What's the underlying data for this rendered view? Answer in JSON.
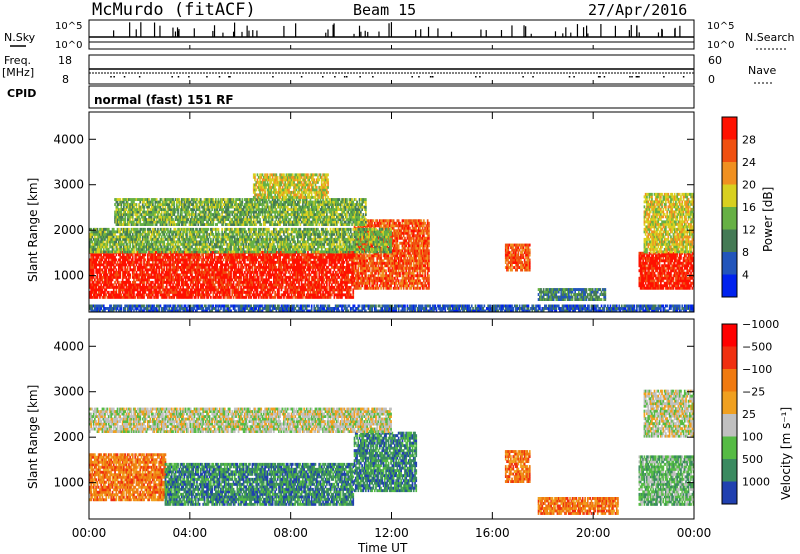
{
  "header": {
    "station": "McMurdo (fitACF)",
    "beam": "Beam 15",
    "date": "27/Apr/2016"
  },
  "top_panels": {
    "nsky_label": "N.Sky",
    "nsearch_label": "N.Search",
    "nsky_ticks": [
      "10^5",
      "10^0"
    ],
    "freq_label_1": "Freq.",
    "freq_label_2": "[MHz]",
    "freq_ticks": [
      "18",
      "8"
    ],
    "nave_label": "Nave",
    "nave_ticks": [
      "60",
      "0"
    ],
    "cpid_label": "CPID",
    "cpid_text": "normal (fast) 151 RF"
  },
  "chart_data": [
    {
      "type": "heatmap",
      "name": "power",
      "ylabel": "Slant Range [km]",
      "xlabel": "",
      "x_ticks": [
        "00:00",
        "04:00",
        "08:00",
        "12:00",
        "16:00",
        "20:00",
        "00:00"
      ],
      "y_ticks": [
        1000,
        2000,
        3000,
        4000
      ],
      "ylim": [
        200,
        4600
      ],
      "xlim_hours": [
        0,
        24
      ],
      "colorbar_label": "Power [dB]",
      "colorbar_ticks": [
        "4",
        "8",
        "12",
        "16",
        "20",
        "24",
        "28"
      ],
      "colorbar_colors": [
        "#0022ee",
        "#2255bb",
        "#447a55",
        "#66b044",
        "#d8d020",
        "#f09020",
        "#f05010",
        "#ff1100"
      ],
      "regions": [
        {
          "t": [
            0.0,
            10.5
          ],
          "r": [
            500,
            1500
          ],
          "level": 7
        },
        {
          "t": [
            10.5,
            13.5
          ],
          "r": [
            700,
            2200
          ],
          "level": 6
        },
        {
          "t": [
            0.0,
            12.0
          ],
          "r": [
            1500,
            2000
          ],
          "level": 3
        },
        {
          "t": [
            1.0,
            11.0
          ],
          "r": [
            2100,
            2700
          ],
          "level": 3
        },
        {
          "t": [
            6.5,
            9.5
          ],
          "r": [
            2700,
            3200
          ],
          "level": 4
        },
        {
          "t": [
            16.5,
            17.5
          ],
          "r": [
            1100,
            1700
          ],
          "level": 6
        },
        {
          "t": [
            17.8,
            20.5
          ],
          "r": [
            450,
            700
          ],
          "level": 2
        },
        {
          "t": [
            21.8,
            24.0
          ],
          "r": [
            700,
            1500
          ],
          "level": 7
        },
        {
          "t": [
            22.0,
            24.0
          ],
          "r": [
            1500,
            2800
          ],
          "level": 4
        },
        {
          "t": [
            0.0,
            24.0
          ],
          "r": [
            200,
            350
          ],
          "level": 1
        }
      ]
    },
    {
      "type": "heatmap",
      "name": "velocity",
      "ylabel": "Slant Range [km]",
      "xlabel": "Time UT",
      "x_ticks": [
        "00:00",
        "04:00",
        "08:00",
        "12:00",
        "16:00",
        "20:00",
        "00:00"
      ],
      "y_ticks": [
        1000,
        2000,
        3000,
        4000
      ],
      "ylim": [
        200,
        4600
      ],
      "xlim_hours": [
        0,
        24
      ],
      "colorbar_label": "Velocity [m s⁻¹]",
      "colorbar_ticks": [
        "1000",
        "500",
        "100",
        "25",
        "−25",
        "−100",
        "−500",
        "−1000"
      ],
      "colorbar_colors": [
        "#2040b0",
        "#3a8a60",
        "#55bb44",
        "#c0c0c0",
        "#f0a020",
        "#f07a10",
        "#f03010",
        "#ff0000"
      ],
      "regions": [
        {
          "t": [
            0.0,
            3.0
          ],
          "r": [
            600,
            1600
          ],
          "level": 5
        },
        {
          "t": [
            3.0,
            10.5
          ],
          "r": [
            500,
            1400
          ],
          "level": 1
        },
        {
          "t": [
            10.5,
            13.0
          ],
          "r": [
            800,
            2100
          ],
          "level": 1
        },
        {
          "t": [
            0.0,
            12.0
          ],
          "r": [
            2100,
            2600
          ],
          "level": 3
        },
        {
          "t": [
            16.5,
            17.5
          ],
          "r": [
            1000,
            1700
          ],
          "level": 5
        },
        {
          "t": [
            17.8,
            21.0
          ],
          "r": [
            300,
            650
          ],
          "level": 5
        },
        {
          "t": [
            21.8,
            24.0
          ],
          "r": [
            500,
            1600
          ],
          "level": 2
        },
        {
          "t": [
            22.0,
            24.0
          ],
          "r": [
            2000,
            3000
          ],
          "level": 3
        }
      ]
    }
  ]
}
